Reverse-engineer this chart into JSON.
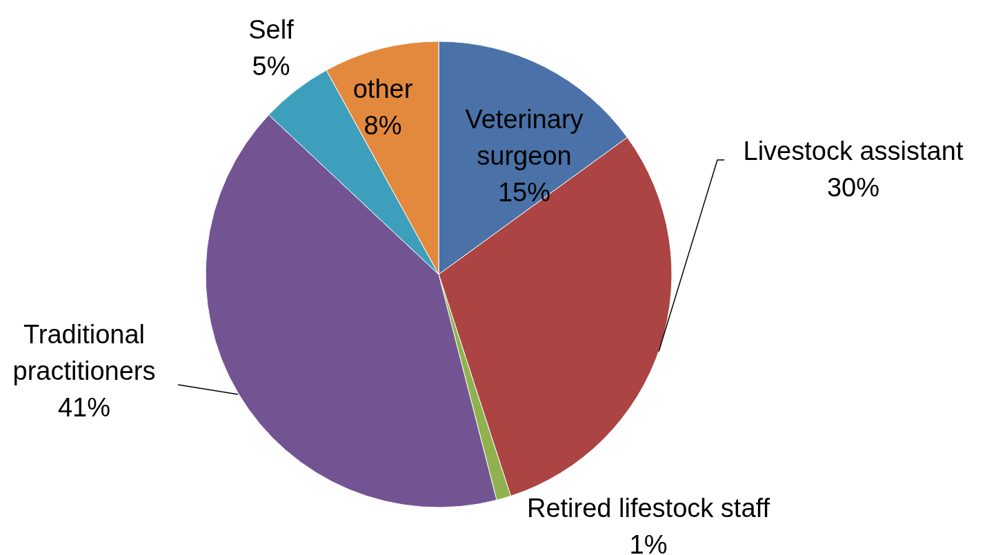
{
  "chart_data": {
    "type": "pie",
    "categories": [
      "Veterinary surgeon",
      "Livestock assistant",
      "Retired lifestock staff",
      "Traditional practitioners",
      "Self",
      "other"
    ],
    "values": [
      15,
      30,
      1,
      41,
      5,
      8
    ],
    "value_labels": [
      "15%",
      "30%",
      "1%",
      "41%",
      "5%",
      "8%"
    ],
    "colors": [
      "#4a72a8",
      "#ab4442",
      "#8fb24f",
      "#735493",
      "#3d9fbc",
      "#e3893e"
    ]
  }
}
